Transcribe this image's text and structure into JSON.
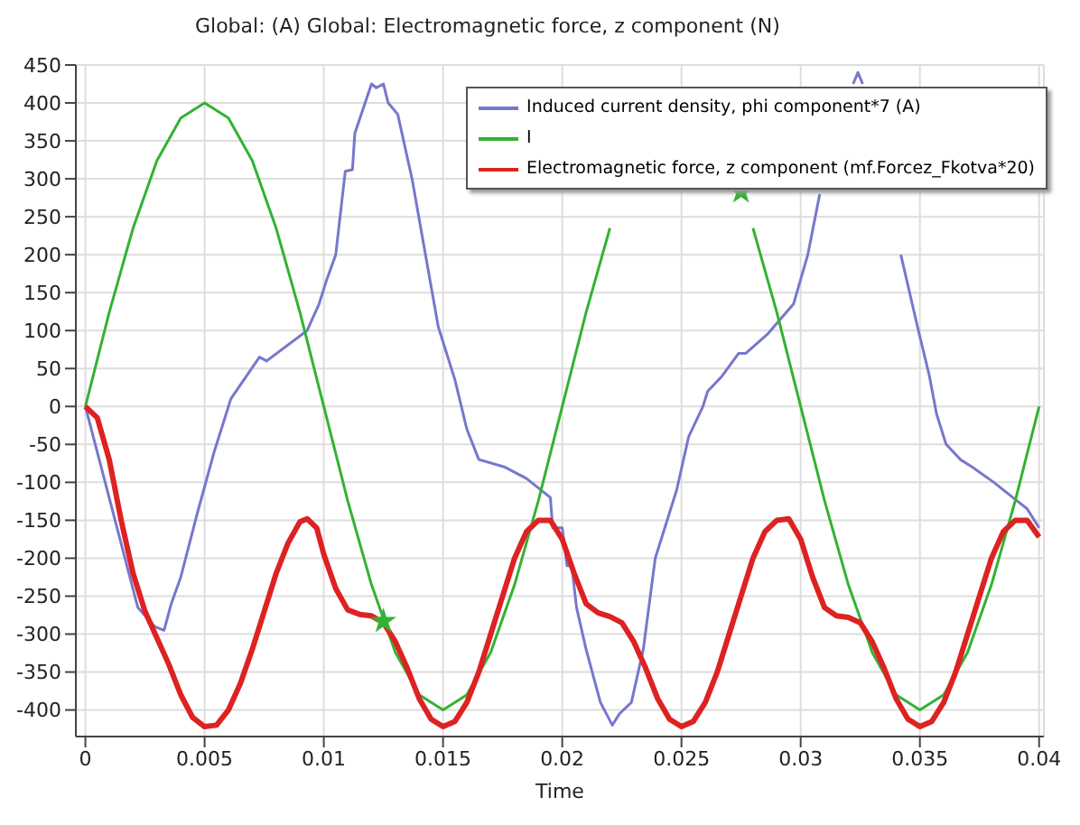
{
  "chart_data": {
    "type": "line",
    "title": "Global:  (A)  Global: Electromagnetic force, z component (N)",
    "xlabel": "Time",
    "xlim": [
      -0.0004,
      0.0402
    ],
    "ylim": [
      -435,
      450
    ],
    "xticks": [
      0,
      0.005,
      0.01,
      0.015,
      0.02,
      0.025,
      0.03,
      0.035,
      0.04
    ],
    "yticks": [
      -400,
      -350,
      -300,
      -250,
      -200,
      -150,
      -100,
      -50,
      0,
      50,
      100,
      150,
      200,
      250,
      300,
      350,
      400,
      450
    ],
    "grid": true,
    "legend": "top right",
    "series": [
      {
        "name": "Induced current density, phi component*7 (A)",
        "color": "#7777cc",
        "x": [
          0,
          0.0022,
          0.0029,
          0.0033,
          0.0036,
          0.004,
          0.0047,
          0.0054,
          0.0061,
          0.0073,
          0.0076,
          0.0093,
          0.0098,
          0.0101,
          0.0105,
          0.0109,
          0.0112,
          0.0113,
          0.012,
          0.0122,
          0.0125,
          0.0127,
          0.0131,
          0.0137,
          0.0148,
          0.0155,
          0.016,
          0.0165,
          0.0176,
          0.0185,
          0.0195,
          0.0196,
          0.02,
          0.0202,
          0.0204,
          0.0206,
          0.021,
          0.0216,
          0.0221,
          0.0224,
          0.0229,
          0.0234,
          0.0239,
          0.0248,
          0.0253,
          0.0259,
          0.0261,
          0.0267,
          0.0274,
          0.0277,
          0.0286,
          0.0297,
          0.0303,
          0.0308,
          0.0314,
          0.032,
          0.0322,
          0.0324,
          0.0326,
          0.0328,
          0.0334,
          0.0342,
          0.0349,
          0.0354,
          0.0357,
          0.0361,
          0.0367,
          0.0372,
          0.0381,
          0.0391,
          0.0395,
          0.0398,
          0.04
        ],
        "values": [
          0,
          -265,
          -290,
          -295,
          -260,
          -225,
          -140,
          -60,
          10,
          65,
          60,
          100,
          135,
          165,
          200,
          310,
          312,
          360,
          425,
          420,
          425,
          400,
          385,
          300,
          105,
          35,
          -30,
          -70,
          -80,
          -95,
          -120,
          -160,
          -160,
          -210,
          -210,
          -265,
          -320,
          -390,
          -420,
          -405,
          -390,
          -320,
          -200,
          -110,
          -40,
          0,
          20,
          40,
          70,
          70,
          95,
          135,
          200,
          280,
          null,
          null,
          425,
          440,
          425,
          null,
          null,
          200,
          105,
          40,
          -10,
          -50,
          -70,
          -80,
          -100,
          -125,
          -135,
          -150,
          -160
        ]
      },
      {
        "name": "I",
        "color": "#33b233",
        "x": [
          0,
          0.001,
          0.002,
          0.003,
          0.004,
          0.005,
          0.006,
          0.007,
          0.008,
          0.009,
          0.01,
          0.011,
          0.012,
          0.013,
          0.014,
          0.015,
          0.016,
          0.017,
          0.018,
          0.019,
          0.02,
          0.021,
          0.022,
          0.023,
          0.024,
          0.025,
          0.026,
          0.027,
          0.028,
          0.029,
          0.03,
          0.031,
          0.032,
          0.033,
          0.034,
          0.035,
          0.036,
          0.037,
          0.038,
          0.039,
          0.04
        ],
        "values": [
          0,
          124,
          235,
          324,
          380,
          400,
          380,
          324,
          235,
          124,
          0,
          -124,
          -235,
          -324,
          -380,
          -400,
          -380,
          -324,
          -235,
          -124,
          0,
          124,
          235,
          null,
          null,
          null,
          null,
          null,
          235,
          124,
          0,
          -124,
          -235,
          -324,
          -380,
          -400,
          -380,
          -324,
          -235,
          -124,
          0
        ]
      },
      {
        "type": "scatter",
        "marker": "star",
        "color": "#33b233",
        "x": [
          0.0125,
          0.0275
        ],
        "values": [
          -283,
          283
        ]
      },
      {
        "name": "Electromagnetic force, z component (mf.Forcez_Fkotva*20)",
        "color": "#dd2222",
        "x": [
          0,
          0.0005,
          0.001,
          0.0015,
          0.002,
          0.0025,
          0.003,
          0.0035,
          0.004,
          0.0045,
          0.005,
          0.0055,
          0.006,
          0.0065,
          0.007,
          0.0075,
          0.008,
          0.0085,
          0.009,
          0.0093,
          0.0097,
          0.01,
          0.0105,
          0.011,
          0.0115,
          0.012,
          0.0125,
          0.013,
          0.0135,
          0.014,
          0.0145,
          0.015,
          0.0155,
          0.016,
          0.0165,
          0.017,
          0.0175,
          0.018,
          0.0185,
          0.019,
          0.0195,
          0.02,
          0.0205,
          0.021,
          0.0215,
          0.022,
          0.0225,
          0.023,
          0.0235,
          0.024,
          0.0245,
          0.025,
          0.0255,
          0.026,
          0.0265,
          0.027,
          0.0275,
          0.028,
          0.0285,
          0.029,
          0.0295,
          0.03,
          0.0305,
          0.031,
          0.0315,
          0.032,
          0.0325,
          0.033,
          0.0335,
          0.034,
          0.0345,
          0.035,
          0.0355,
          0.036,
          0.0365,
          0.037,
          0.0375,
          0.038,
          0.0385,
          0.039,
          0.0395,
          0.04
        ],
        "values": [
          0,
          -15,
          -70,
          -150,
          -220,
          -270,
          -305,
          -340,
          -380,
          -410,
          -422,
          -420,
          -400,
          -365,
          -320,
          -270,
          -220,
          -180,
          -152,
          -148,
          -160,
          -195,
          -240,
          -268,
          -274,
          -276,
          -285,
          -310,
          -345,
          -385,
          -412,
          -422,
          -415,
          -390,
          -350,
          -300,
          -250,
          -200,
          -165,
          -150,
          -150,
          -175,
          -220,
          -260,
          -272,
          -277,
          -285,
          -310,
          -345,
          -385,
          -412,
          -422,
          -415,
          -390,
          -350,
          -300,
          -250,
          -200,
          -165,
          -150,
          -148,
          -175,
          -225,
          -265,
          -276,
          -278,
          -285,
          -310,
          -345,
          -385,
          -412,
          -422,
          -415,
          -390,
          -350,
          -300,
          -250,
          -200,
          -165,
          -150,
          -150,
          -172
        ]
      }
    ]
  }
}
